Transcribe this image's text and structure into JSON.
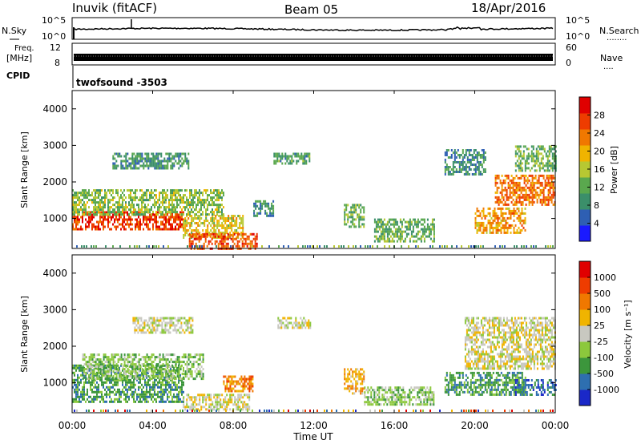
{
  "header": {
    "station": "Inuvik (fitACF)",
    "beam": "Beam 05",
    "date": "18/Apr/2016"
  },
  "status_panels": {
    "nsky_label": "N.Sky",
    "nsearch_label": "N.Search",
    "nsearch_dots": "........",
    "noise_ticks": [
      "10^5",
      "10^0"
    ],
    "freq_label_1": "Freq.",
    "freq_label_2": "[MHz]",
    "freq_ticks": [
      "12",
      "8"
    ],
    "nave_label": "Nave",
    "nave_dots": "....",
    "nave_ticks": [
      "60",
      "0"
    ],
    "cpid_label": "CPID",
    "cpid_value": "twofsound -3503"
  },
  "colors": {
    "power_scale": [
      "#1a1aff",
      "#2e5fb3",
      "#3b8f6a",
      "#5aa84e",
      "#b7c832",
      "#f0b400",
      "#f07800",
      "#ee3c00",
      "#e00000"
    ],
    "velocity_scale": [
      "#e00000",
      "#ee3c00",
      "#f07800",
      "#f0b400",
      "#c8c8c0",
      "#8cc83c",
      "#3c963c",
      "#2e6fb0",
      "#1a28c8"
    ]
  },
  "chart_data": [
    {
      "type": "heatmap",
      "name": "power",
      "ylabel": "Slant Range [km]",
      "yticks": [
        "1000",
        "2000",
        "3000",
        "4000"
      ],
      "colorbar_label": "Power [dB]",
      "colorbar_ticks": [
        "4",
        "8",
        "12",
        "16",
        "20",
        "24",
        "28"
      ],
      "colorbar_range": [
        0,
        32
      ],
      "ylim": [
        180,
        4500
      ],
      "xlim_hours": [
        0,
        24
      ],
      "regions": [
        {
          "t0": 0.0,
          "t1": 5.5,
          "r0": 700,
          "r1": 1200,
          "level": 28
        },
        {
          "t0": 5.5,
          "t1": 8.5,
          "r0": 500,
          "r1": 1100,
          "level": 18
        },
        {
          "t0": 5.8,
          "t1": 9.2,
          "r0": 200,
          "r1": 600,
          "level": 27
        },
        {
          "t0": 0.0,
          "t1": 7.5,
          "r0": 1100,
          "r1": 1800,
          "level": 14
        },
        {
          "t0": 2.0,
          "t1": 5.8,
          "r0": 2400,
          "r1": 2800,
          "level": 9
        },
        {
          "t0": 9.0,
          "t1": 10.0,
          "r0": 1100,
          "r1": 1500,
          "level": 8
        },
        {
          "t0": 10.0,
          "t1": 11.8,
          "r0": 2500,
          "r1": 2800,
          "level": 10
        },
        {
          "t0": 13.5,
          "t1": 14.5,
          "r0": 800,
          "r1": 1400,
          "level": 12
        },
        {
          "t0": 15.0,
          "t1": 18.0,
          "r0": 400,
          "r1": 1000,
          "level": 11
        },
        {
          "t0": 18.5,
          "t1": 20.5,
          "r0": 2200,
          "r1": 2900,
          "level": 8
        },
        {
          "t0": 20.0,
          "t1": 22.5,
          "r0": 600,
          "r1": 1300,
          "level": 22
        },
        {
          "t0": 21.0,
          "t1": 24.0,
          "r0": 1400,
          "r1": 2200,
          "level": 25
        },
        {
          "t0": 22.0,
          "t1": 24.0,
          "r0": 2300,
          "r1": 3000,
          "level": 12
        }
      ]
    },
    {
      "type": "heatmap",
      "name": "velocity",
      "ylabel": "Slant Range [km]",
      "yticks": [
        "1000",
        "2000",
        "3000",
        "4000"
      ],
      "colorbar_label": "Velocity [m s⁻¹]",
      "colorbar_ticks": [
        "1000",
        "500",
        "100",
        "25",
        "-25",
        "-100",
        "-500",
        "-1000"
      ],
      "ylim": [
        180,
        4500
      ],
      "xlim_hours": [
        0,
        24
      ],
      "regions": [
        {
          "t0": 0.0,
          "t1": 5.5,
          "r0": 500,
          "r1": 1500,
          "color": 2
        },
        {
          "t0": 0.5,
          "t1": 6.5,
          "r0": 1100,
          "r1": 1800,
          "color": 3
        },
        {
          "t0": 5.5,
          "t1": 8.8,
          "r0": 250,
          "r1": 700,
          "color": 4
        },
        {
          "t0": 3.0,
          "t1": 6.0,
          "r0": 2400,
          "r1": 2800,
          "color": 4
        },
        {
          "t0": 7.5,
          "t1": 9.0,
          "r0": 800,
          "r1": 1200,
          "color": 6
        },
        {
          "t0": 10.2,
          "t1": 11.8,
          "r0": 2500,
          "r1": 2800,
          "color": 4
        },
        {
          "t0": 13.5,
          "t1": 14.5,
          "r0": 700,
          "r1": 1400,
          "color": 5
        },
        {
          "t0": 14.5,
          "t1": 18.0,
          "r0": 400,
          "r1": 900,
          "color": 3
        },
        {
          "t0": 18.5,
          "t1": 22.5,
          "r0": 700,
          "r1": 1300,
          "color": 2
        },
        {
          "t0": 19.5,
          "t1": 24.0,
          "r0": 1400,
          "r1": 2800,
          "color": 4
        },
        {
          "t0": 22.0,
          "t1": 24.0,
          "r0": 700,
          "r1": 1100,
          "color": 1
        }
      ]
    }
  ],
  "xaxis": {
    "ticks": [
      "00:00",
      "04:00",
      "08:00",
      "12:00",
      "16:00",
      "20:00",
      "00:00"
    ],
    "label": "Time UT"
  }
}
